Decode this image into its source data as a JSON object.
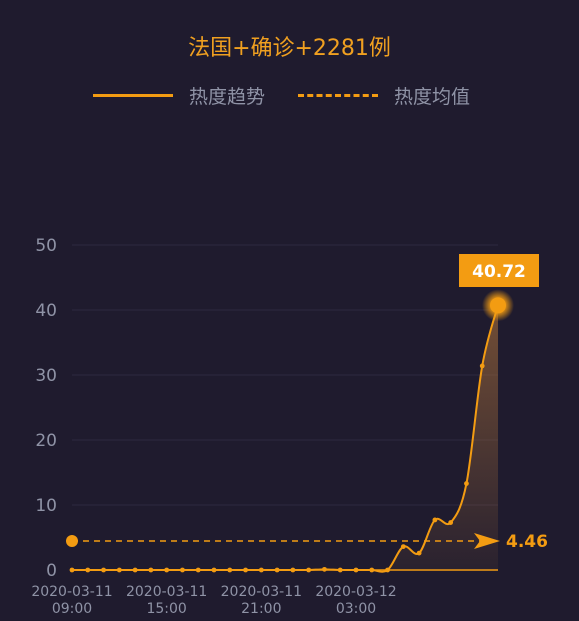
{
  "chart_data": {
    "type": "line",
    "title": "法国+确诊+2281例",
    "legend": [
      "热度趋势",
      "热度均值"
    ],
    "legend_position": "top",
    "ylim": [
      0,
      50
    ],
    "y_ticks": [
      0,
      10,
      20,
      30,
      40,
      50
    ],
    "x_tick_labels": [
      [
        "2020-03-11",
        "09:00"
      ],
      [
        "2020-03-11",
        "15:00"
      ],
      [
        "2020-03-11",
        "21:00"
      ],
      [
        "2020-03-12",
        "03:00"
      ]
    ],
    "series": [
      {
        "name": "热度趋势",
        "values": [
          0,
          0,
          0,
          0,
          0,
          0,
          0,
          0,
          0,
          0,
          0,
          0,
          0,
          0,
          0,
          0,
          0.1,
          0,
          0,
          0,
          0,
          3.6,
          2.6,
          7.7,
          7.3,
          13.3,
          31.4,
          40.72
        ]
      }
    ],
    "mean_value": 4.46,
    "peak_value": 40.72,
    "peak_label": "40.72",
    "mean_label": "4.46",
    "grid": true,
    "colors": {
      "background": "#1f1b2e",
      "line": "#f39c12",
      "title": "#f0a020",
      "grid": "#2e2a40",
      "tick": "#8f93a6"
    }
  }
}
